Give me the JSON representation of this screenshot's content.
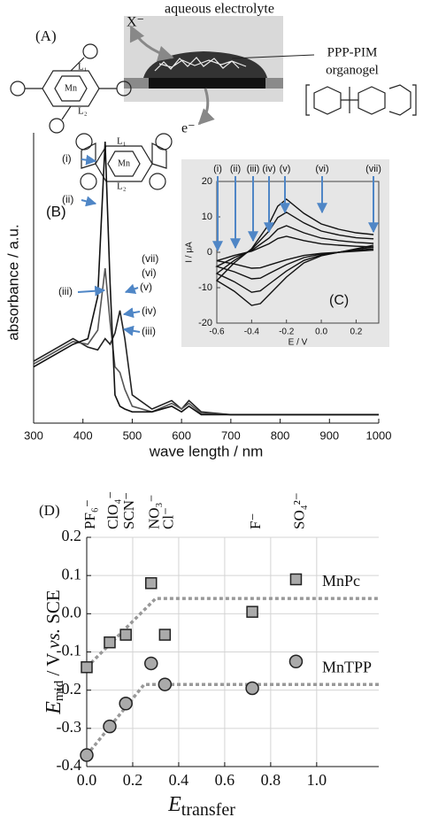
{
  "panel_a": {
    "label": "(A)",
    "electrolyte": "aqueous electrolyte",
    "gel": [
      "PPP-PIM",
      "organogel"
    ],
    "anion": "X⁻",
    "electron": "e⁻",
    "tpp": {
      "top": "L₁",
      "metal": "Mn",
      "bottom": "L₂"
    },
    "pc": {
      "top": "L₁",
      "metal": "Mn",
      "bottom": "L₂"
    }
  },
  "chart_data": [
    {
      "type": "line",
      "label": "(B)",
      "xlabel": "wave length / nm",
      "ylabel": "absorbance / a.u.",
      "xlim": [
        300,
        1000
      ],
      "ylim": [
        0,
        1
      ],
      "xticks": [
        300,
        400,
        500,
        600,
        700,
        800,
        900,
        1000
      ],
      "x": [
        300,
        340,
        380,
        410,
        430,
        445,
        455,
        465,
        475,
        485,
        500,
        540,
        580,
        600,
        615,
        640,
        700,
        800,
        900,
        1000
      ],
      "series": [
        {
          "color": "#222222",
          "values": [
            0.22,
            0.26,
            0.3,
            0.27,
            0.26,
            0.3,
            0.28,
            0.32,
            0.4,
            0.3,
            0.1,
            0.05,
            0.08,
            0.05,
            0.08,
            0.04,
            0.03,
            0.03,
            0.03,
            0.03
          ]
        },
        {
          "color": "#555555",
          "values": [
            0.21,
            0.25,
            0.29,
            0.28,
            0.33,
            0.55,
            0.36,
            0.2,
            0.18,
            0.12,
            0.06,
            0.04,
            0.07,
            0.05,
            0.07,
            0.035,
            0.03,
            0.03,
            0.03,
            0.03
          ]
        },
        {
          "color": "#111111",
          "values": [
            0.2,
            0.24,
            0.28,
            0.3,
            0.45,
            1.0,
            0.5,
            0.1,
            0.06,
            0.05,
            0.04,
            0.04,
            0.06,
            0.04,
            0.06,
            0.03,
            0.03,
            0.03,
            0.03,
            0.03
          ]
        }
      ],
      "annotations": [
        "(i)",
        "(ii)",
        "(iii)",
        "(vii)",
        "(vi)",
        "(v)",
        "(iv)",
        "(iii)"
      ],
      "annotation_color": "#4f86c6"
    },
    {
      "type": "line",
      "label": "(C)",
      "xlabel": "E / V",
      "ylabel": "I / μA",
      "xlim": [
        -0.6,
        0.33
      ],
      "ylim": [
        -20,
        20
      ],
      "xticks": [
        -0.6,
        -0.4,
        -0.2,
        {
          "value": 0,
          "label": "0.0"
        },
        0.2
      ],
      "yticks": [
        -20,
        -10,
        0,
        10,
        20
      ],
      "x": [
        0.3,
        0.2,
        0.1,
        0.0,
        -0.1,
        -0.2,
        -0.3,
        -0.35,
        -0.4,
        -0.5,
        -0.6,
        -0.5,
        -0.4,
        -0.3,
        -0.25,
        -0.2,
        -0.1,
        0.0,
        0.1,
        0.2,
        0.3
      ],
      "series": [
        {
          "color": "#111111",
          "values": [
            2,
            1,
            0,
            -1,
            -3,
            -7,
            -12,
            -14.5,
            -15,
            -11,
            -8,
            -3,
            1,
            8,
            13,
            15,
            11,
            8,
            6.5,
            5.5,
            5
          ]
        },
        {
          "color": "#111111",
          "values": [
            1.5,
            0.8,
            0,
            -0.8,
            -2.3,
            -5.3,
            -9,
            -10.9,
            -11.3,
            -8.3,
            -6,
            -2.3,
            0.8,
            6,
            9.8,
            11.3,
            8.3,
            6,
            4.9,
            4.1,
            3.8
          ]
        },
        {
          "color": "#111111",
          "values": [
            1,
            0.5,
            0,
            -0.5,
            -1.5,
            -3.5,
            -6,
            -7.3,
            -7.5,
            -5.5,
            -4,
            -1.5,
            0.5,
            4,
            6.5,
            7.5,
            5.5,
            4,
            3.3,
            2.8,
            2.5
          ]
        },
        {
          "color": "#111111",
          "values": [
            0.6,
            0.3,
            0,
            -0.3,
            -0.9,
            -2.1,
            -3.6,
            -4.4,
            -4.5,
            -3.3,
            -2.4,
            -0.9,
            0.3,
            2.4,
            3.9,
            4.5,
            3.3,
            2.4,
            2,
            1.7,
            1.5
          ]
        }
      ],
      "annotations": [
        "(i)",
        "(ii)",
        "(iii)",
        "(iv)",
        "(v)",
        "(vi)",
        "(vii)"
      ],
      "annotation_color": "#4f86c6",
      "background": "#e6e6e6"
    },
    {
      "type": "scatter",
      "label": "(D)",
      "xlabel_parts": [
        "E",
        "transfer"
      ],
      "ylabel_parts": [
        "E",
        "mid",
        " / V ",
        "vs.",
        " SCE"
      ],
      "xlim": [
        0,
        1.27
      ],
      "ylim": [
        -0.4,
        0.2
      ],
      "xticks": [
        {
          "value": 0,
          "label": "0.0"
        },
        0.2,
        0.4,
        0.6,
        0.8,
        {
          "value": 1,
          "label": "1.0"
        }
      ],
      "yticks": [
        -0.4,
        -0.3,
        -0.2,
        -0.1,
        {
          "value": 0,
          "label": "0.0"
        },
        0.1,
        0.2
      ],
      "grid": true,
      "anions": [
        "PF₆⁻",
        "ClO₄⁻",
        "SCN⁻",
        "NO₃⁻",
        "Cl⁻",
        "F⁻",
        "SO₄²⁻"
      ],
      "series": [
        {
          "name": "MnPc",
          "marker": "square",
          "color": "#aaaaaa",
          "x": [
            0.0,
            0.1,
            0.17,
            0.28,
            0.34,
            0.72,
            0.91
          ],
          "values": [
            -0.14,
            -0.075,
            -0.055,
            0.08,
            -0.055,
            0.005,
            0.09
          ]
        },
        {
          "name": "MnTPP",
          "marker": "circle",
          "color": "#aaaaaa",
          "x": [
            0.0,
            0.1,
            0.17,
            0.28,
            0.34,
            0.72,
            0.91
          ],
          "values": [
            -0.37,
            -0.295,
            -0.235,
            -0.13,
            -0.185,
            -0.195,
            -0.125
          ]
        }
      ],
      "fits": [
        {
          "color": "#999999",
          "x": [
            0,
            0.3,
            1.27
          ],
          "values": [
            -0.14,
            0.04,
            0.04
          ]
        },
        {
          "color": "#999999",
          "x": [
            0,
            0.25,
            1.27
          ],
          "values": [
            -0.37,
            -0.185,
            -0.185
          ]
        }
      ]
    }
  ]
}
